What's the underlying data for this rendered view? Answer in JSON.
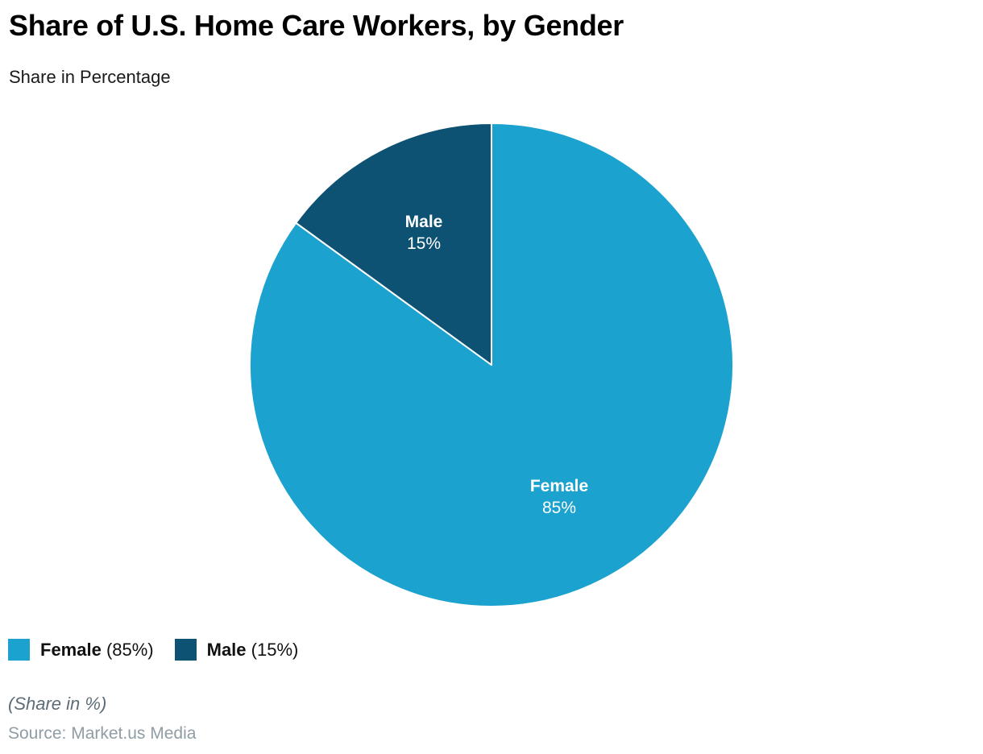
{
  "header": {
    "title": "Share of U.S. Home Care Workers, by Gender",
    "subtitle": "Share in Percentage"
  },
  "chart_data": {
    "type": "pie",
    "title": "Share of U.S. Home Care Workers, by Gender",
    "subtitle": "Share in Percentage",
    "unit": "percent",
    "start_angle_deg": 0,
    "direction": "clockwise",
    "slices": [
      {
        "label": "Female",
        "value": 85,
        "display": "85%",
        "color": "#1ca2ce"
      },
      {
        "label": "Male",
        "value": 15,
        "display": "15%",
        "color": "#0e5273"
      }
    ],
    "legend_position": "bottom-left",
    "slice_border_color": "#ffffff"
  },
  "legend": {
    "items": [
      {
        "label": "Female",
        "value_text": "(85%)",
        "color": "#1ca2ce"
      },
      {
        "label": "Male",
        "value_text": "(15%)",
        "color": "#0e5273"
      }
    ]
  },
  "footer": {
    "note": "(Share in %)",
    "source": "Source: Market.us Media"
  }
}
